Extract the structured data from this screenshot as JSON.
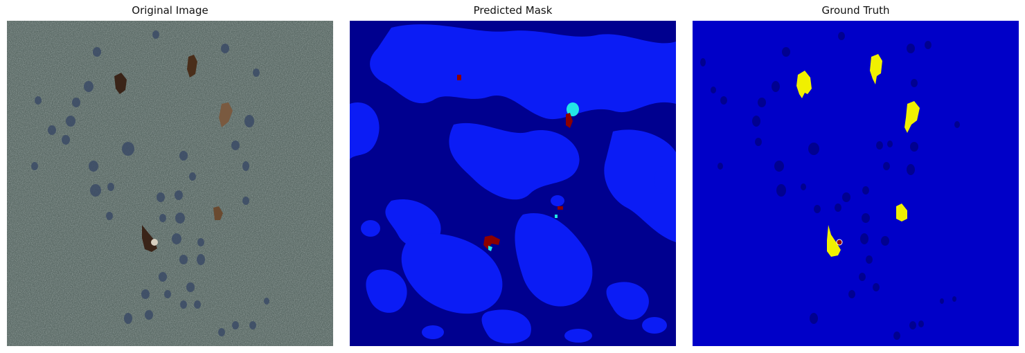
{
  "figure": {
    "panels": [
      {
        "title": "Original Image"
      },
      {
        "title": "Predicted Mask"
      },
      {
        "title": "Ground Truth"
      }
    ]
  },
  "colors": {
    "original_background": "#5b6a66",
    "original_dark_spot": "#3b4b66",
    "original_animal": "#3a2418",
    "mask_background": "#00008f",
    "mask_class_blue": "#0b1cf5",
    "mask_class_cyan": "#22e6e6",
    "mask_class_dark_red": "#8b0000",
    "mask_class_yellow": "#f0f000",
    "gt_background": "#0000c8",
    "gt_spot": "#000090"
  }
}
